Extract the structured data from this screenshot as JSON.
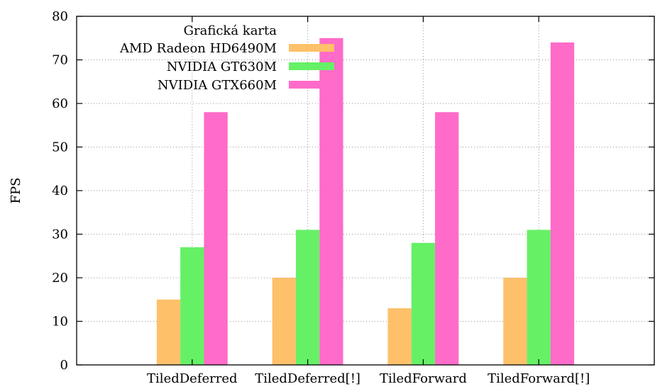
{
  "chart_data": {
    "type": "bar",
    "categories": [
      "TiledDeferred",
      "TiledDeferred[!]",
      "TiledForward",
      "TiledForward[!]"
    ],
    "series": [
      {
        "name": "AMD Radeon HD6490M",
        "color": "#FFC06A",
        "values": [
          15,
          20,
          13,
          20
        ]
      },
      {
        "name": "NVIDIA GT630M",
        "color": "#66F066",
        "values": [
          27,
          31,
          28,
          31
        ]
      },
      {
        "name": "NVIDIA GTX660M",
        "color": "#FF6BC8",
        "values": [
          58,
          75,
          58,
          74
        ]
      }
    ],
    "title": "",
    "xlabel": "",
    "ylabel": "FPS",
    "ylim": [
      0,
      80
    ],
    "yticks": [
      "0",
      "10",
      "20",
      "30",
      "40",
      "50",
      "60",
      "70",
      "80"
    ],
    "grid": true,
    "legend": {
      "title": "Grafická karta",
      "placement": "top-left"
    }
  }
}
